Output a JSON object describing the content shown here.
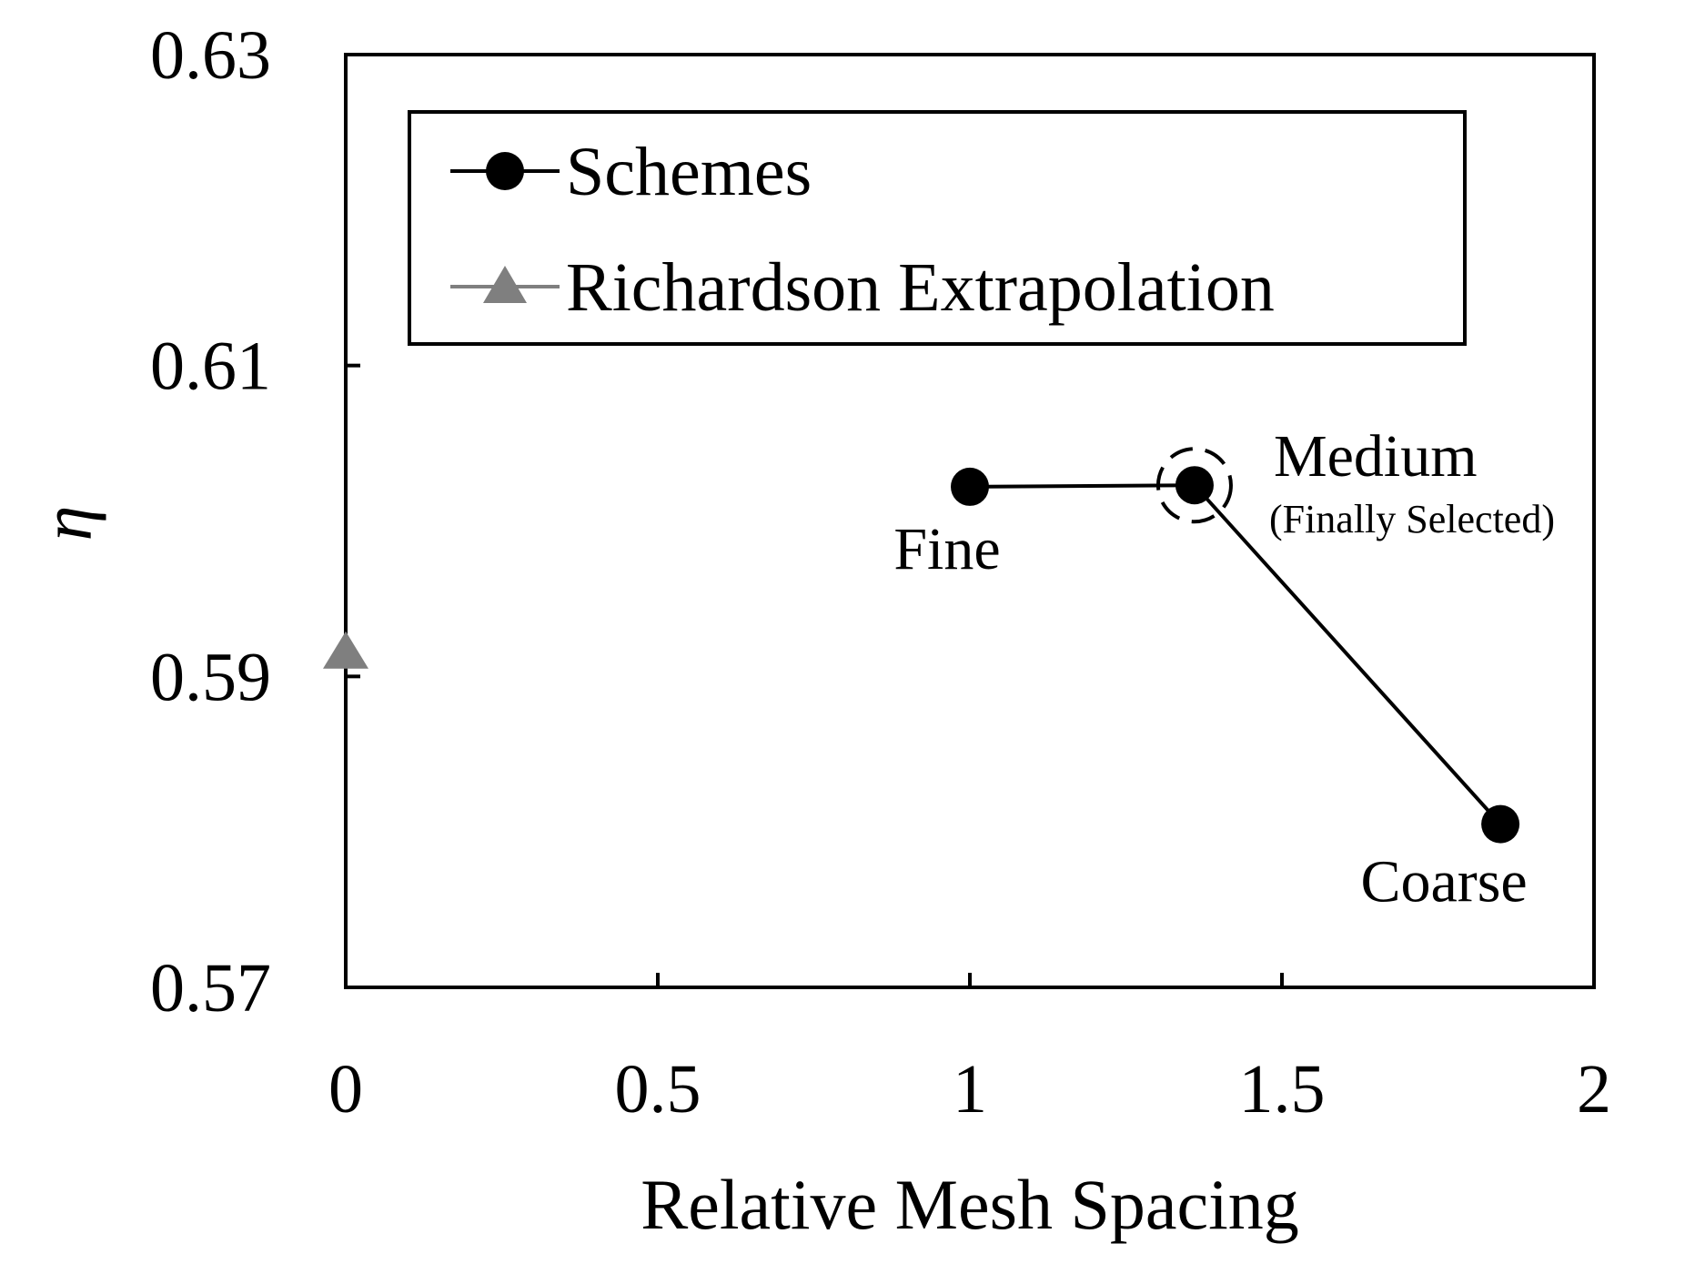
{
  "chart_data": {
    "type": "scatter",
    "xlabel": "Relative Mesh Spacing",
    "ylabel": "η",
    "xlim": [
      0,
      2
    ],
    "ylim": [
      0.57,
      0.63
    ],
    "x_ticks": [
      "0",
      "0.5",
      "1",
      "1.5",
      "2"
    ],
    "y_ticks": [
      "0.57",
      "0.59",
      "0.61",
      "0.63"
    ],
    "grid": false,
    "legend_position": "top-left",
    "series": [
      {
        "name": "Schemes",
        "marker": "circle",
        "line": true,
        "color": "#000000",
        "points": [
          {
            "x": 1.0,
            "y": 0.6022,
            "label": "Fine",
            "sublabel": ""
          },
          {
            "x": 1.36,
            "y": 0.6023,
            "label": "Medium",
            "sublabel": "(Finally Selected)"
          },
          {
            "x": 1.85,
            "y": 0.5805,
            "label": "Coarse",
            "sublabel": ""
          }
        ]
      },
      {
        "name": "Richardson Extrapolation",
        "marker": "triangle",
        "line": false,
        "color": "#7f7f7f",
        "points": [
          {
            "x": 0.0,
            "y": 0.5915,
            "label": "",
            "sublabel": ""
          }
        ]
      }
    ]
  }
}
